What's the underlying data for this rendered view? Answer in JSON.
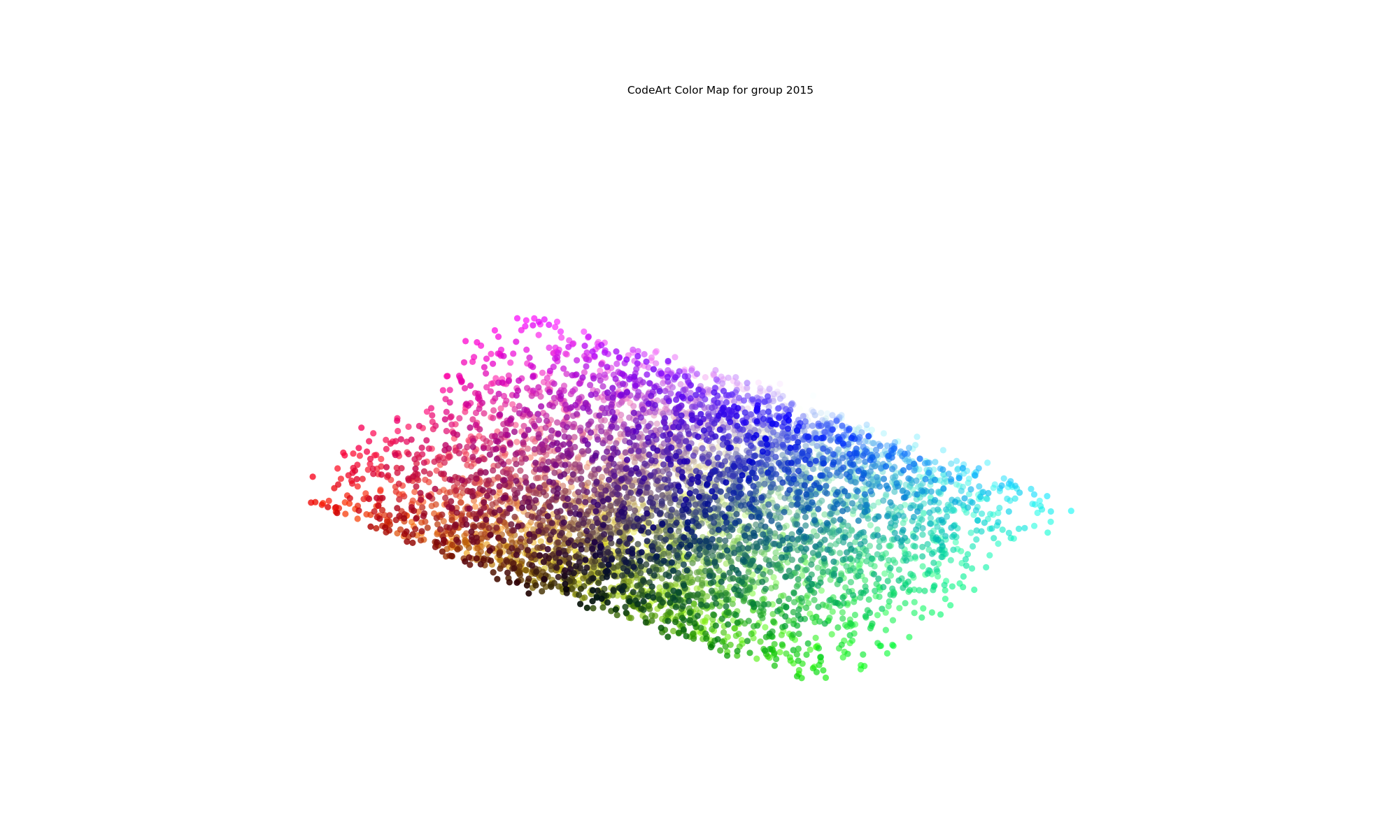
{
  "chart_data": {
    "type": "scatter",
    "title": "CodeArt Color Map for group 2015",
    "xlabel": "",
    "ylabel": "",
    "axes_visible": false,
    "grid": false,
    "legend": "none",
    "point_count": 6000,
    "description_of_points": "each point is a color sample plotted in RGB color-space projection; point color equals sampled color",
    "color_space_corners": {
      "red": "#ff0000",
      "green": "#00ff00",
      "blue": "#0000ff",
      "black": "#000000",
      "white": "#ffffff",
      "magenta": "#ff00ff",
      "yellow": "#ffff00",
      "cyan": "#00ffff"
    }
  }
}
